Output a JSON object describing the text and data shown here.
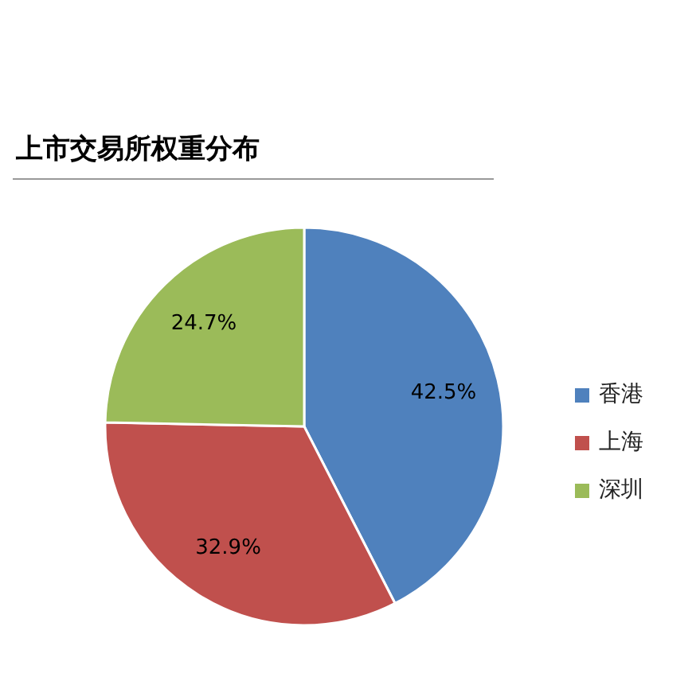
{
  "chart_data": {
    "type": "pie",
    "title": "上市交易所权重分布",
    "categories": [
      "香港",
      "上海",
      "深圳"
    ],
    "values": [
      42.5,
      32.9,
      24.7
    ],
    "value_labels": [
      "42.5%",
      "32.9%",
      "24.7%"
    ],
    "colors": [
      "#4f81bd",
      "#c0504d",
      "#9bbb59"
    ],
    "legend": "right"
  }
}
